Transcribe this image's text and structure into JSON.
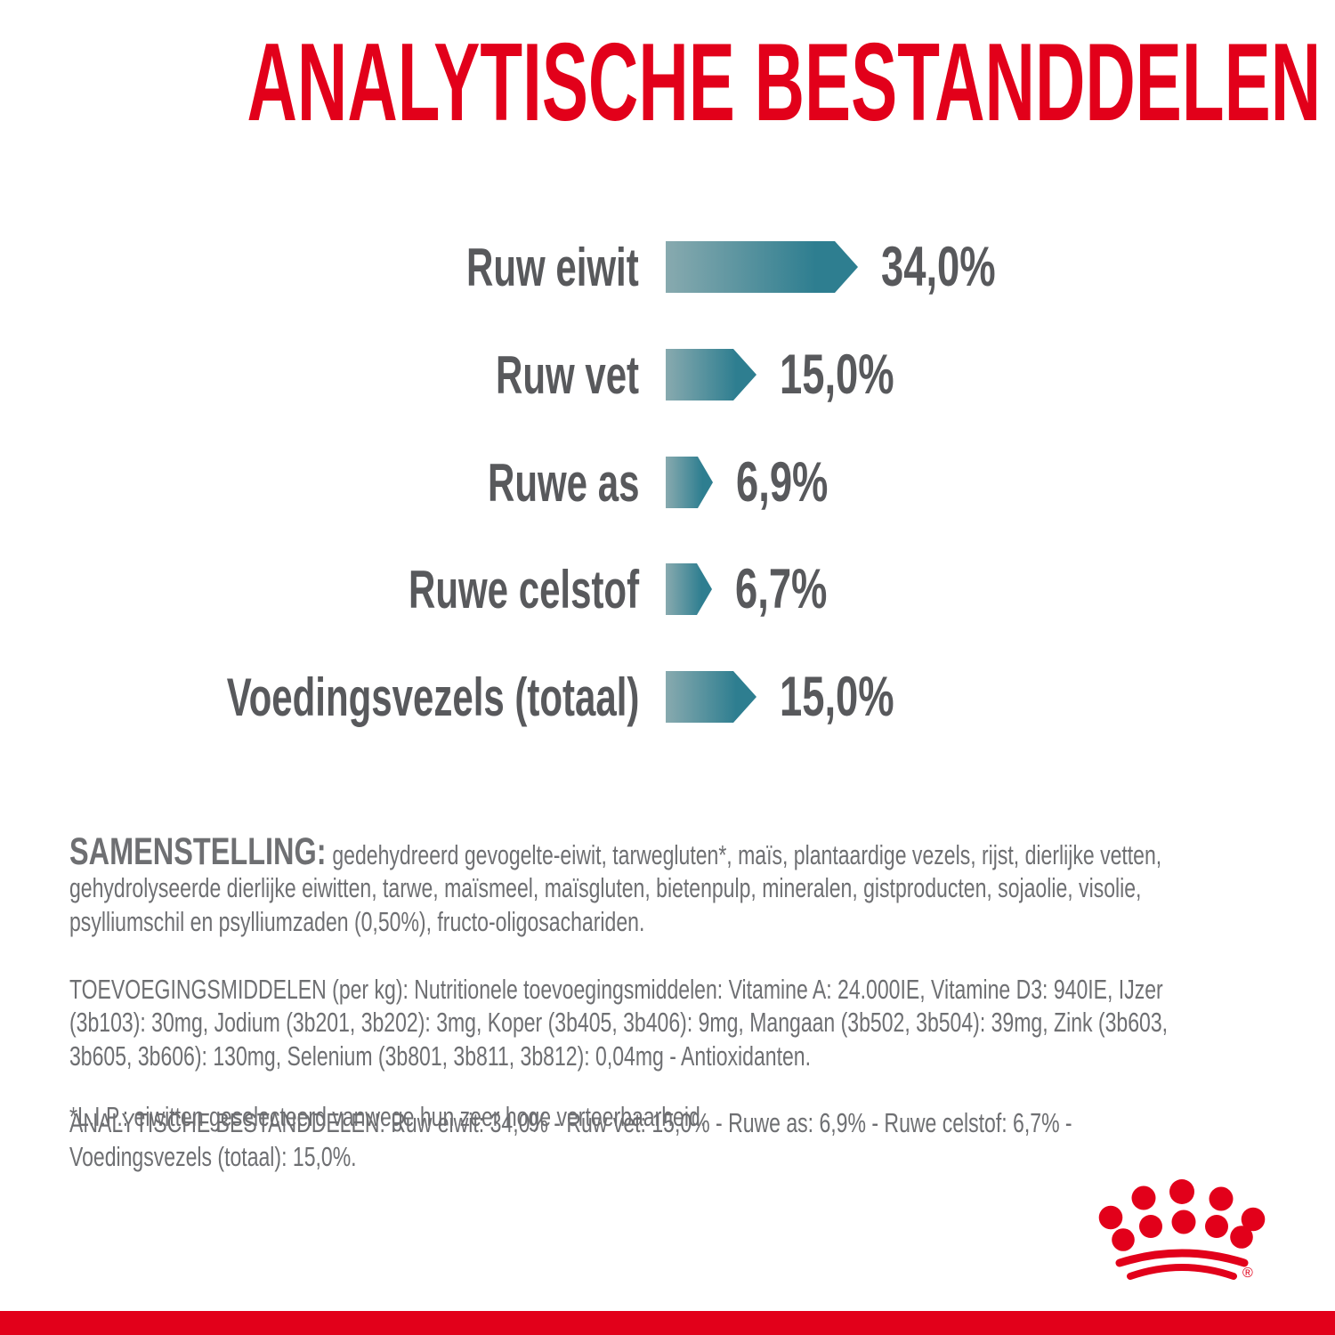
{
  "title": "ANALYTISCHE BESTANDDELEN",
  "colors": {
    "brand_red": "#E2001A",
    "bar_light": "#88AAAF",
    "bar_dark": "#2E7E90",
    "chart_gray": "#58595C",
    "body_gray": "#6E6F72"
  },
  "chart_data": {
    "type": "bar",
    "orientation": "horizontal",
    "title": "ANALYTISCHE BESTANDDELEN",
    "unit": "%",
    "categories": [
      "Ruw eiwit",
      "Ruw vet",
      "Ruwe as",
      "Ruwe celstof",
      "Voedingsvezels (totaal)"
    ],
    "values": [
      34.0,
      15.0,
      6.9,
      6.7,
      15.0
    ],
    "value_labels": [
      "34,0%",
      "15,0%",
      "6,9%",
      "6,7%",
      "15,0%"
    ],
    "legend": "none",
    "grid": "off"
  },
  "composition": {
    "lead": "SAMENSTELLING:",
    "lines": [
      "gedehydreerd gevogelte-eiwit, tarwegluten*, maïs, plantaardige vezels, rijst, dierlijke vetten,",
      "gehydrolyseerde dierlijke eiwitten, tarwe, maïsmeel, maïsgluten, bietenpulp, mineralen, gistproducten, sojaolie, visolie,",
      "psylliumschil en psylliumzaden (0,50%), fructo-oligosachariden."
    ]
  },
  "additives": {
    "lines": [
      "TOEVOEGINGSMIDDELEN (per kg): Nutritionele toevoegingsmiddelen: Vitamine A: 24.000IE, Vitamine D3: 940IE, IJzer",
      "(3b103): 30mg, Jodium (3b201, 3b202): 3mg, Koper (3b405, 3b406): 9mg, Mangaan (3b502, 3b504): 39mg, Zink (3b603,",
      "3b605, 3b606): 130mg, Selenium (3b801, 3b811, 3b812): 0,04mg - Antioxidanten."
    ]
  },
  "analytical": {
    "lines": [
      "ANALYTISCHE BESTANDDELEN: Ruw eiwit: 34,0% - Ruw vet: 15,0% - Ruwe as: 6,9% - Ruwe celstof: 6,7% -",
      "Voedingsvezels (totaal): 15,0%."
    ]
  },
  "footnote": "*L.I.P.: eiwitten geselecteerd vanwege hun zeer hoge verteerbaarheid.",
  "logo": {
    "name": "royal-canin-crown",
    "registered_mark": "®"
  }
}
